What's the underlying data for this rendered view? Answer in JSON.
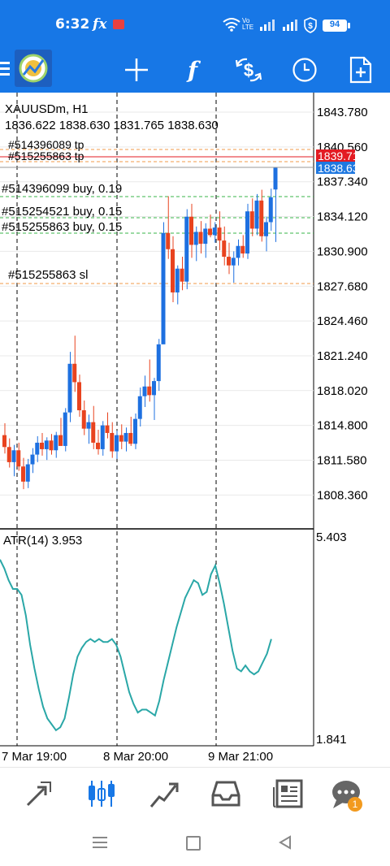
{
  "status_bar": {
    "time": "6:32",
    "network_label": "Vo LTE",
    "battery": "94",
    "colors": {
      "bg": "#1777e6"
    }
  },
  "toolbar": {
    "icons": [
      "app-logo-icon",
      "crosshair-icon",
      "indicators-icon",
      "symbol-change-icon",
      "timeframe-clock-icon",
      "new-order-icon"
    ]
  },
  "chart": {
    "symbol_info": "XAUUSDm, H1",
    "ohlc": "1836.622 1838.630 1831.765 1838.630",
    "bid_price": "1839.710",
    "ask_price": "1838.630",
    "price_ticks": [
      "1843.780",
      "1840.560",
      "1837.340",
      "1834.120",
      "1830.900",
      "1827.680",
      "1824.460",
      "1821.240",
      "1818.020",
      "1814.800",
      "1811.580",
      "1808.360"
    ],
    "order_labels": {
      "tp1": "#514396089 tp",
      "tp2": "#515255863 tp",
      "buy1": "#514396099 buy, 0.19",
      "buy2": "#515254521 buy, 0.15",
      "buy3": "#515255863 buy, 0.15",
      "sl": "#515255863 sl"
    },
    "indicator_label": "ATR(14) 3.953",
    "indicator_max": "5.403",
    "indicator_min": "1.841",
    "time_labels": [
      "7 Mar 19:00",
      "8 Mar 20:00",
      "9 Mar 21:00"
    ],
    "colors": {
      "bull": "#1e70e0",
      "bear": "#e8431f",
      "atr": "#2aa7a7",
      "bid": "#e31b23",
      "ask": "#1f78e0",
      "tp_line": "#f29a4a",
      "buy_line": "#39b54a"
    }
  },
  "bottom_nav": {
    "items": [
      "trade-icon",
      "chart-icon",
      "statistics-icon",
      "inbox-icon",
      "news-icon",
      "chat-icon"
    ],
    "chat_badge": "1",
    "active_color": "#1777e6"
  },
  "system_nav": {
    "items": [
      "recents-icon",
      "home-icon",
      "back-icon"
    ]
  }
}
